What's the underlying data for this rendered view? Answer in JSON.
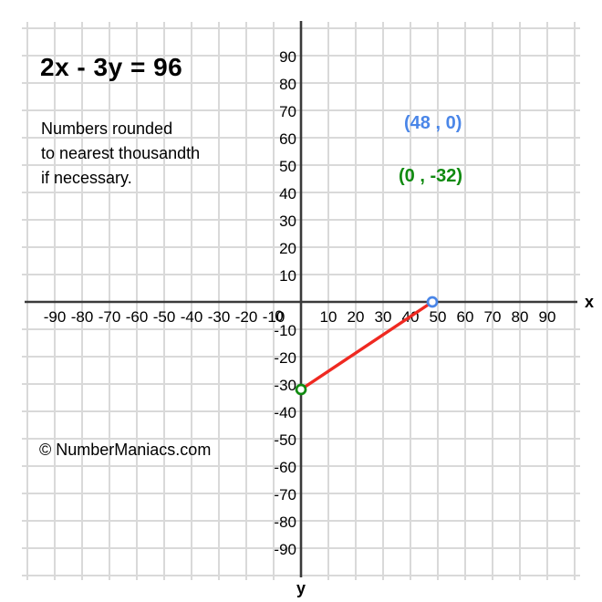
{
  "header": {
    "equation": "2x - 3y = 96",
    "note_lines": [
      "Numbers rounded",
      "to nearest thousandth",
      "if necessary."
    ]
  },
  "watermark": "© NumberManiacs.com",
  "annotations": {
    "x_intercept": {
      "text": "(48 , 0)",
      "color": "#4a86e8"
    },
    "y_intercept": {
      "text": "(0 , -32)",
      "color": "#108a10"
    }
  },
  "chart_data": {
    "type": "line",
    "title": "2x - 3y = 96",
    "xlabel": "x",
    "ylabel": "y",
    "xlim": [
      -100,
      100
    ],
    "ylim": [
      -100,
      100
    ],
    "grid": true,
    "grid_step": 10,
    "x_tick_labels": [
      -90,
      -80,
      -70,
      -60,
      -50,
      -40,
      -30,
      -20,
      -10,
      10,
      20,
      30,
      40,
      50,
      60,
      70,
      80,
      90
    ],
    "y_tick_labels": [
      90,
      80,
      70,
      60,
      50,
      40,
      30,
      20,
      10,
      -10,
      -20,
      -30,
      -40,
      -50,
      -60,
      -70,
      -80,
      -90
    ],
    "origin_label": "0",
    "colors": {
      "grid": "#d9d9d9",
      "axis": "#3a3a3a",
      "segment": "#ef2921",
      "x_intercept": "#4a86e8",
      "y_intercept": "#108a10",
      "tick_text": "#000000"
    },
    "series": [
      {
        "name": "segment-between-intercepts",
        "color": "#ef2921",
        "points": [
          {
            "x": 0,
            "y": -32
          },
          {
            "x": 48,
            "y": 0
          }
        ]
      }
    ],
    "markers": [
      {
        "name": "x-intercept-marker",
        "x": 48,
        "y": 0,
        "label": "(48 , 0)",
        "color": "#4a86e8"
      },
      {
        "name": "y-intercept-marker",
        "x": 0,
        "y": -32,
        "label": "(0 , -32)",
        "color": "#108a10"
      }
    ]
  }
}
